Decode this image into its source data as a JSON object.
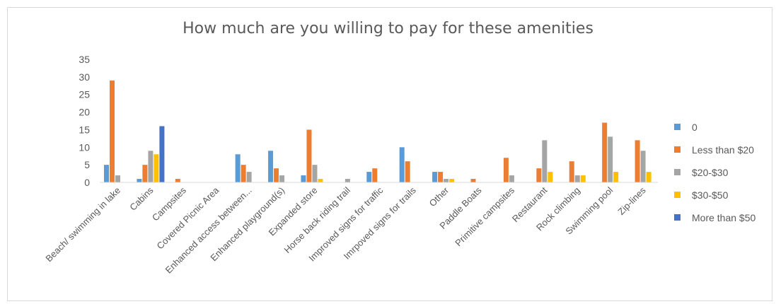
{
  "chart_data": {
    "type": "bar",
    "title": "How much are you willing to pay for these amenities",
    "xlabel": "",
    "ylabel": "",
    "ylim": [
      0,
      35
    ],
    "yticks": [
      0,
      5,
      10,
      15,
      20,
      25,
      30,
      35
    ],
    "grid": false,
    "legend_position": "right",
    "categories": [
      "Beach/ swimming in lake",
      "Cabins",
      "Campsites",
      "Covered Picnic Area",
      "Enhanced access between...",
      "Enhanced playground(s)",
      "Expanded store",
      "Horse back riding trail",
      "Improved signs for traffic",
      "Imrpoved signs for trails",
      "Other",
      "Paddle Boats",
      "Primitive campsites",
      "Restaurant",
      "Rock climbing",
      "Swimming pool",
      "Zip-lines"
    ],
    "series": [
      {
        "name": "0",
        "color": "#5B9BD5",
        "values": [
          5,
          1,
          0,
          0,
          8,
          9,
          2,
          0,
          3,
          10,
          3,
          0,
          0,
          0,
          0,
          0,
          0
        ]
      },
      {
        "name": "Less than $20",
        "color": "#ED7D31",
        "values": [
          29,
          5,
          1,
          0,
          5,
          4,
          15,
          0,
          4,
          6,
          3,
          1,
          7,
          4,
          6,
          17,
          12
        ]
      },
      {
        "name": "$20-$30",
        "color": "#A5A5A5",
        "values": [
          2,
          9,
          0,
          0,
          3,
          2,
          5,
          1,
          0,
          0,
          1,
          0,
          2,
          12,
          2,
          13,
          9
        ]
      },
      {
        "name": "$30-$50",
        "color": "#FFC000",
        "values": [
          0,
          8,
          0,
          0,
          0,
          0,
          1,
          0,
          0,
          0,
          1,
          0,
          0,
          3,
          2,
          3,
          3
        ]
      },
      {
        "name": "More than $50",
        "color": "#4472C4",
        "values": [
          0,
          16,
          0,
          0,
          0,
          0,
          0,
          0,
          0,
          0,
          0,
          0,
          0,
          0,
          0,
          0,
          0
        ]
      }
    ]
  }
}
